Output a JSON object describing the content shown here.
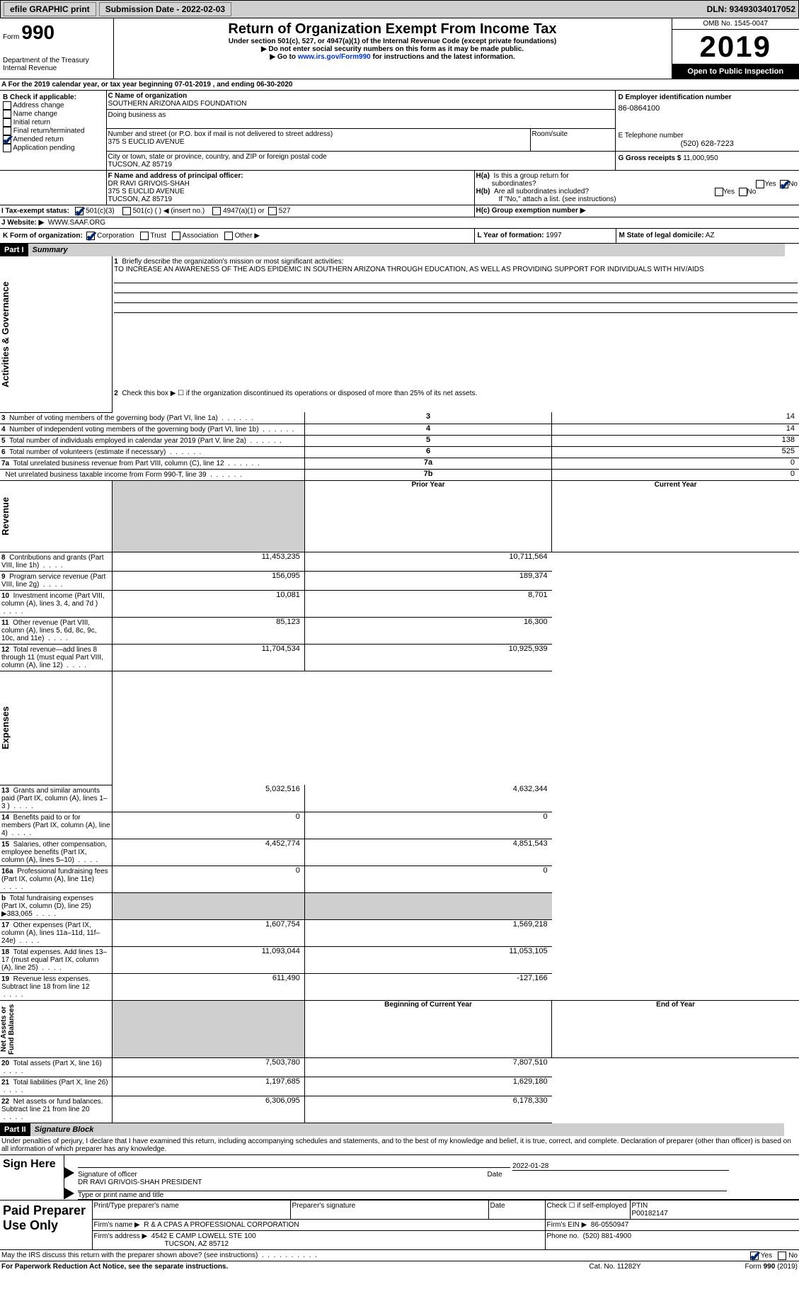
{
  "topbar": {
    "efile": "efile GRAPHIC print",
    "subdate_lbl": "Submission Date - 2022-02-03",
    "dln_lbl": "DLN: 93493034017052"
  },
  "header": {
    "form_lbl": "Form",
    "form_num": "990",
    "dept": "Department of the Treasury\nInternal Revenue",
    "title": "Return of Organization Exempt From Income Tax",
    "sub1": "Under section 501(c), 527, or 4947(a)(1) of the Internal Revenue Code (except private foundations)",
    "sub2": "▶ Do not enter social security numbers on this form as it may be made public.",
    "sub3a": "▶ Go to ",
    "sub3_link": "www.irs.gov/Form990",
    "sub3b": " for instructions and the latest information.",
    "omb": "OMB No. 1545-0047",
    "year": "2019",
    "open": "Open to Public Inspection"
  },
  "A": {
    "text_a": "For the 2019 calendar year, or tax year beginning ",
    "begin": "07-01-2019",
    "text_b": " , and ending ",
    "end": "06-30-2020"
  },
  "B": {
    "label": "B Check if applicable:",
    "items": [
      {
        "txt": "Address change",
        "chk": false
      },
      {
        "txt": "Name change",
        "chk": false
      },
      {
        "txt": "Initial return",
        "chk": false
      },
      {
        "txt": "Final return/terminated",
        "chk": false
      },
      {
        "txt": "Amended return",
        "chk": true
      },
      {
        "txt": "Application pending",
        "chk": false
      }
    ]
  },
  "C": {
    "name_lbl": "C Name of organization",
    "name": "SOUTHERN ARIZONA AIDS FOUNDATION",
    "dba_lbl": "Doing business as",
    "street_lbl": "Number and street (or P.O. box if mail is not delivered to street address)",
    "street": "375 S EUCLID AVENUE",
    "room_lbl": "Room/suite",
    "city_lbl": "City or town, state or province, country, and ZIP or foreign postal code",
    "city": "TUCSON, AZ  85719"
  },
  "D": {
    "lbl": "D Employer identification number",
    "val": "86-0864100"
  },
  "E": {
    "lbl": "E Telephone number",
    "val": "(520) 628-7223"
  },
  "G": {
    "lbl": "G Gross receipts $",
    "val": "11,000,950"
  },
  "F": {
    "lbl": "F  Name and address of principal officer:",
    "line1": "DR RAVI GRIVOIS-SHAH",
    "line2": "375 S EUCLID AVENUE",
    "line3": "TUCSON, AZ  85719"
  },
  "H": {
    "a": "H(a)  Is this a group return for subordinates?",
    "b": "H(b)  Are all subordinates included?",
    "b2": "If \"No,\" attach a list. (see instructions)",
    "c": "H(c)  Group exemption number ▶",
    "yes": "Yes",
    "no": "No"
  },
  "I": {
    "lbl": "I    Tax-exempt status:",
    "opts": [
      "501(c)(3)",
      "501(c) (  ) ◀ (insert no.)",
      "4947(a)(1) or",
      "527"
    ]
  },
  "J": {
    "lbl": "J   Website: ▶",
    "val": "WWW.SAAF.ORG"
  },
  "K": {
    "lbl": "K Form of organization:",
    "opts": [
      "Corporation",
      "Trust",
      "Association",
      "Other ▶"
    ]
  },
  "L": {
    "lbl": "L Year of formation:",
    "val": "1997"
  },
  "M": {
    "lbl": "M State of legal domicile:",
    "val": "AZ"
  },
  "part1": {
    "hdr": "Part I",
    "title": "Summary",
    "q1": "Briefly describe the organization's mission or most significant activities:",
    "mission": "TO INCREASE AN AWARENESS OF THE AIDS EPIDEMIC IN SOUTHERN ARIZONA THROUGH EDUCATION, AS WELL AS PROVIDING SUPPORT FOR INDIVIDUALS WITH HIV/AIDS",
    "q2": "Check this box ▶ ☐ if the organization discontinued its operations or disposed of more than 25% of its net assets.",
    "side_act": "Activities & Governance",
    "side_rev": "Revenue",
    "side_exp": "Expenses",
    "side_net": "Net Assets or Fund Balances",
    "prior": "Prior Year",
    "current": "Current Year",
    "begin": "Beginning of Current Year",
    "end": "End of Year",
    "rows_gov": [
      {
        "n": "3",
        "t": "Number of voting members of the governing body (Part VI, line 1a)",
        "c": "3",
        "v": "14"
      },
      {
        "n": "4",
        "t": "Number of independent voting members of the governing body (Part VI, line 1b)",
        "c": "4",
        "v": "14"
      },
      {
        "n": "5",
        "t": "Total number of individuals employed in calendar year 2019 (Part V, line 2a)",
        "c": "5",
        "v": "138"
      },
      {
        "n": "6",
        "t": "Total number of volunteers (estimate if necessary)",
        "c": "6",
        "v": "525"
      },
      {
        "n": "7a",
        "t": "Total unrelated business revenue from Part VIII, column (C), line 12",
        "c": "7a",
        "v": "0"
      },
      {
        "n": "",
        "t": "Net unrelated business taxable income from Form 990-T, line 39",
        "c": "7b",
        "v": "0"
      }
    ],
    "rows_rev": [
      {
        "n": "8",
        "t": "Contributions and grants (Part VIII, line 1h)",
        "p": "11,453,235",
        "v": "10,711,564"
      },
      {
        "n": "9",
        "t": "Program service revenue (Part VIII, line 2g)",
        "p": "156,095",
        "v": "189,374"
      },
      {
        "n": "10",
        "t": "Investment income (Part VIII, column (A), lines 3, 4, and 7d )",
        "p": "10,081",
        "v": "8,701"
      },
      {
        "n": "11",
        "t": "Other revenue (Part VIII, column (A), lines 5, 6d, 8c, 9c, 10c, and 11e)",
        "p": "85,123",
        "v": "16,300"
      },
      {
        "n": "12",
        "t": "Total revenue—add lines 8 through 11 (must equal Part VIII, column (A), line 12)",
        "p": "11,704,534",
        "v": "10,925,939"
      }
    ],
    "rows_exp": [
      {
        "n": "13",
        "t": "Grants and similar amounts paid (Part IX, column (A), lines 1–3 )",
        "p": "5,032,516",
        "v": "4,632,344"
      },
      {
        "n": "14",
        "t": "Benefits paid to or for members (Part IX, column (A), line 4)",
        "p": "0",
        "v": "0"
      },
      {
        "n": "15",
        "t": "Salaries, other compensation, employee benefits (Part IX, column (A), lines 5–10)",
        "p": "4,452,774",
        "v": "4,851,543"
      },
      {
        "n": "16a",
        "t": "Professional fundraising fees (Part IX, column (A), line 11e)",
        "p": "0",
        "v": "0"
      },
      {
        "n": "b",
        "t": "Total fundraising expenses (Part IX, column (D), line 25) ▶383,065",
        "p": "",
        "v": "",
        "gray": true
      },
      {
        "n": "17",
        "t": "Other expenses (Part IX, column (A), lines 11a–11d, 11f–24e)",
        "p": "1,607,754",
        "v": "1,569,218"
      },
      {
        "n": "18",
        "t": "Total expenses. Add lines 13–17 (must equal Part IX, column (A), line 25)",
        "p": "11,093,044",
        "v": "11,053,105"
      },
      {
        "n": "19",
        "t": "Revenue less expenses. Subtract line 18 from line 12",
        "p": "611,490",
        "v": "-127,166"
      }
    ],
    "rows_net": [
      {
        "n": "20",
        "t": "Total assets (Part X, line 16)",
        "p": "7,503,780",
        "v": "7,807,510"
      },
      {
        "n": "21",
        "t": "Total liabilities (Part X, line 26)",
        "p": "1,197,685",
        "v": "1,629,180"
      },
      {
        "n": "22",
        "t": "Net assets or fund balances. Subtract line 21 from line 20",
        "p": "6,306,095",
        "v": "6,178,330"
      }
    ]
  },
  "part2": {
    "hdr": "Part II",
    "title": "Signature Block",
    "decl": "Under penalties of perjury, I declare that I have examined this return, including accompanying schedules and statements, and to the best of my knowledge and belief, it is true, correct, and complete. Declaration of preparer (other than officer) is based on all information of which preparer has any knowledge.",
    "sign_here": "Sign Here",
    "sig_of": "Signature of officer",
    "date": "Date",
    "sig_date": "2022-01-28",
    "name_title": "DR RAVI GRIVOIS-SHAH  PRESIDENT",
    "type_lbl": "Type or print name and title",
    "paid": "Paid Preparer Use Only",
    "p_name_lbl": "Print/Type preparer's name",
    "p_sig_lbl": "Preparer's signature",
    "p_date_lbl": "Date",
    "p_self": "Check ☐ if self-employed",
    "ptin_lbl": "PTIN",
    "ptin": "P00182147",
    "firm_name_lbl": "Firm's name    ▶",
    "firm_name": "R & A CPAS A PROFESSIONAL CORPORATION",
    "firm_ein_lbl": "Firm's EIN ▶",
    "firm_ein": "86-0550947",
    "firm_addr_lbl": "Firm's address ▶",
    "firm_addr": "4542 E CAMP LOWELL STE 100",
    "firm_city": "TUCSON, AZ  85712",
    "phone_lbl": "Phone no.",
    "phone": "(520) 881-4900",
    "discuss": "May the IRS discuss this return with the preparer shown above? (see instructions)",
    "pra": "For Paperwork Reduction Act Notice, see the separate instructions.",
    "cat": "Cat. No. 11282Y",
    "foot": "Form 990 (2019)"
  }
}
